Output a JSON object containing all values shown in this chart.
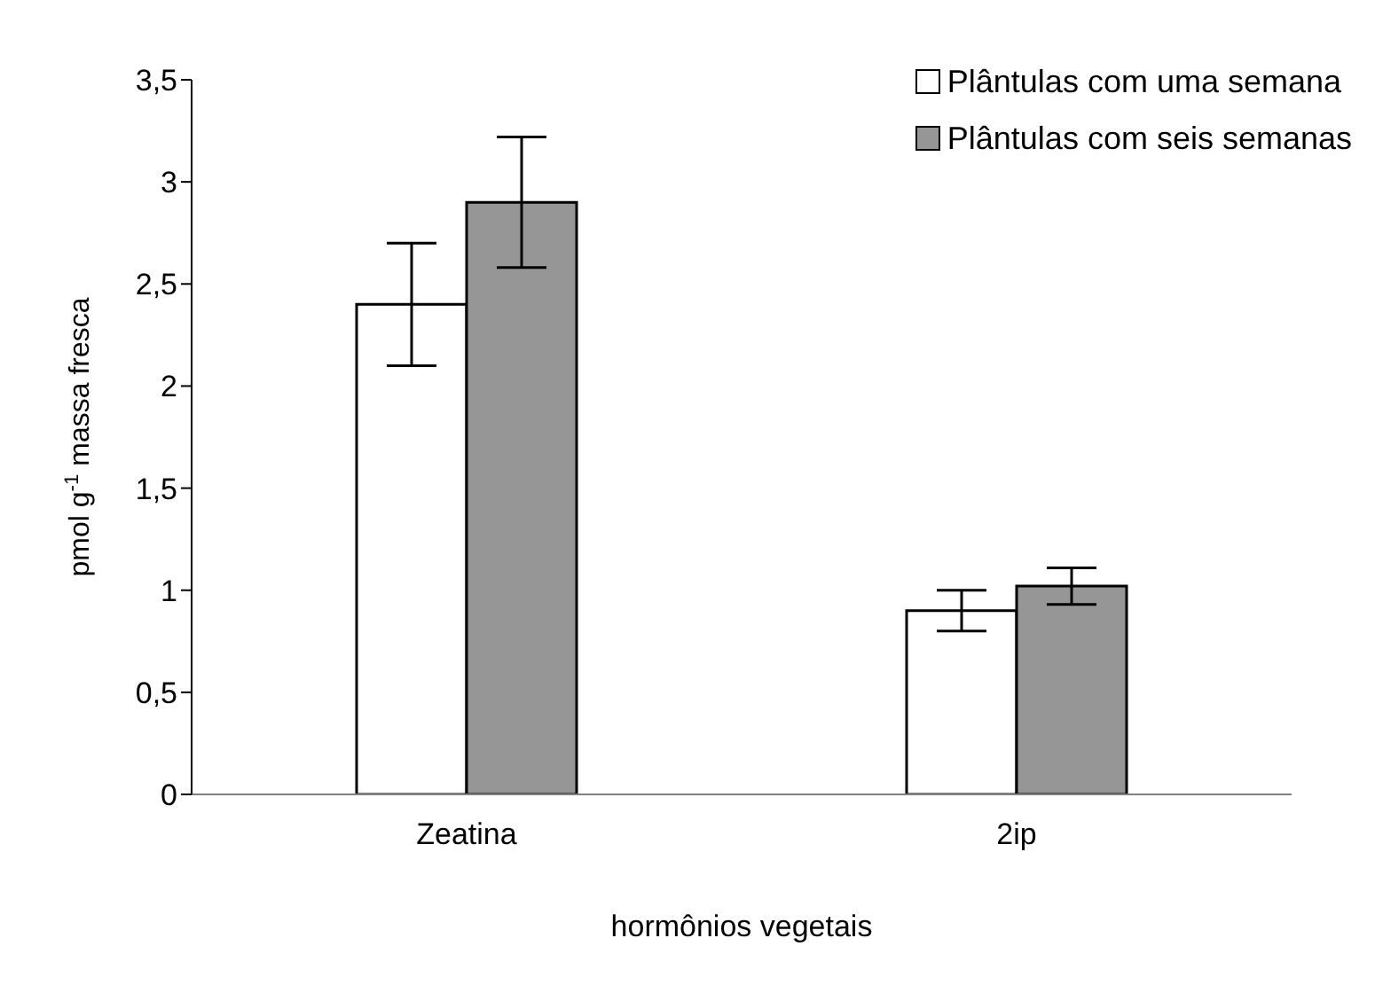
{
  "chart_data": {
    "type": "bar",
    "xlabel": "hormônios vegetais",
    "ylabel": "pmol g$^{-1}$ massa fresca",
    "categories": [
      "Zeatina",
      "2ip"
    ],
    "series": [
      {
        "name": "Plântulas com uma semana",
        "color": "#ffffff",
        "values": [
          2.4,
          0.9
        ],
        "errors": [
          [
            2.1,
            2.7
          ],
          [
            0.8,
            1.0
          ]
        ]
      },
      {
        "name": "Plântulas com seis semanas",
        "color": "#969696",
        "values": [
          2.9,
          1.02
        ],
        "errors": [
          [
            2.58,
            3.22
          ],
          [
            0.93,
            1.11
          ]
        ]
      }
    ],
    "ylim": [
      0,
      3.5
    ],
    "yticks": [
      0,
      {
        "value": 0.5,
        "label": "0,5"
      },
      1,
      {
        "value": 1.5,
        "label": "1,5"
      },
      2,
      {
        "value": 2.5,
        "label": "2,5"
      },
      3,
      {
        "value": 3.5,
        "label": "3,5"
      }
    ],
    "grid": false,
    "legend": "top right"
  }
}
